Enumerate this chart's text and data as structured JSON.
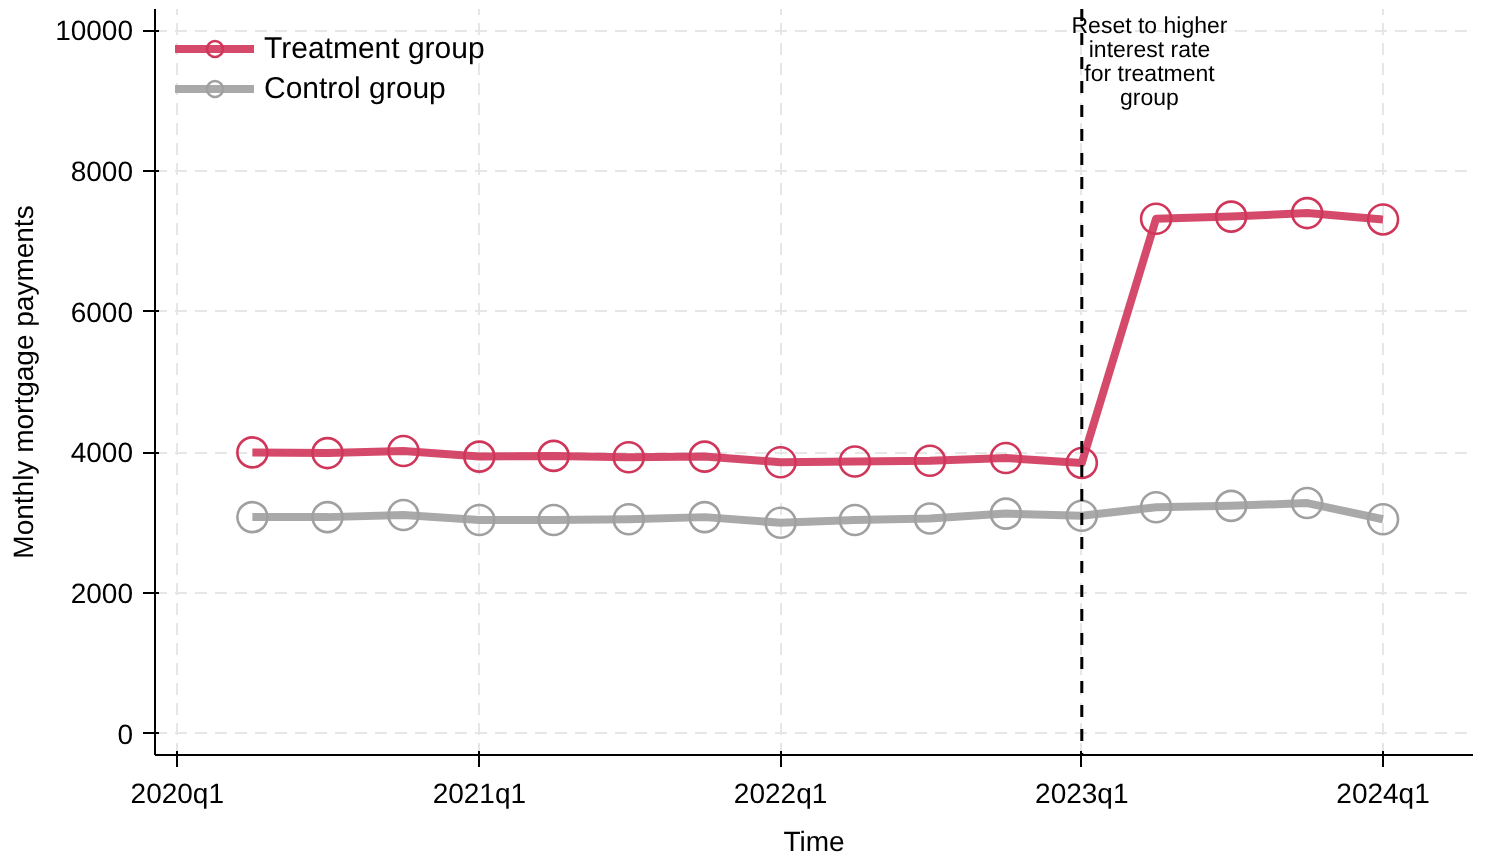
{
  "chart_data": {
    "type": "line",
    "xlabel": "Time",
    "ylabel": "Monthly mortgage payments",
    "x": [
      "2020-04-01",
      "2020-07-01",
      "2020-10-01",
      "2021-01-01",
      "2021-04-01",
      "2021-07-01",
      "2021-10-01",
      "2022-01-01",
      "2022-04-01",
      "2022-07-01",
      "2022-10-01",
      "2023-01-01",
      "2023-04-01",
      "2023-07-01",
      "2023-10-01",
      "2024-01-01"
    ],
    "series": [
      {
        "name": "Treatment group",
        "color": "#d0365a",
        "values": [
          4000,
          3990,
          4020,
          3940,
          3950,
          3930,
          3940,
          3860,
          3870,
          3880,
          3920,
          3850,
          7320,
          7350,
          7400,
          7310
        ]
      },
      {
        "name": "Control group",
        "color": "#a0a0a0",
        "values": [
          3080,
          3080,
          3110,
          3040,
          3040,
          3050,
          3080,
          3000,
          3040,
          3060,
          3130,
          3100,
          3220,
          3240,
          3280,
          3050
        ]
      }
    ],
    "xlim": [
      "2019-12-05",
      "2024-04-19"
    ],
    "xticks": [
      {
        "value": "2020-01-01",
        "label": "2020q1"
      },
      {
        "value": "2021-01-01",
        "label": "2021q1"
      },
      {
        "value": "2022-01-01",
        "label": "2022q1"
      },
      {
        "value": "2023-01-01",
        "label": "2023q1"
      },
      {
        "value": "2024-01-01",
        "label": "2024q1"
      }
    ],
    "ylim": [
      -300,
      10300
    ],
    "yticks": [
      0,
      2000,
      4000,
      6000,
      8000,
      10000
    ],
    "ref_lines": [
      {
        "axis": "x",
        "value": "2023-01-01",
        "label": "Reset to higher\ninterest rate\nfor treatment\ngroup",
        "color": "#000000",
        "line_style": "dashed"
      }
    ],
    "grid": true,
    "legend": "top left",
    "marker": "circle",
    "line_style": "solid"
  }
}
